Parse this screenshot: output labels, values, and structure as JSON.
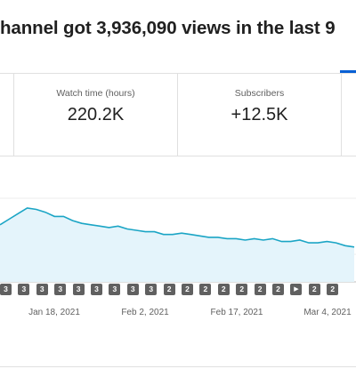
{
  "headline": "hannel got 3,936,090 views in the last 9",
  "metrics": [
    {
      "label": "Watch time (hours)",
      "value": "220.2K"
    },
    {
      "label": "Subscribers",
      "value": "+12.5K"
    }
  ],
  "colors": {
    "line": "#1ba5c5",
    "fill": "#e4f4fb",
    "accent": "#065fd4",
    "badge": "#606060"
  },
  "chart_data": {
    "type": "area",
    "y": [
      41,
      45,
      49,
      53,
      52,
      50,
      47,
      47,
      44,
      42,
      41,
      40,
      39,
      40,
      38,
      37,
      36,
      36,
      34,
      34,
      35,
      34,
      33,
      32,
      32,
      31,
      31,
      30,
      31,
      30,
      31,
      29,
      29,
      30,
      28,
      28,
      29,
      28,
      26,
      25
    ],
    "x_ticks": [
      "Jan 18, 2021",
      "Feb 2, 2021",
      "Feb 17, 2021",
      "Mar 4, 2021"
    ],
    "grid": true
  },
  "badges": [
    {
      "label": "3",
      "icon": "number-badge"
    },
    {
      "label": "3",
      "icon": "number-badge"
    },
    {
      "label": "3",
      "icon": "number-badge"
    },
    {
      "label": "3",
      "icon": "number-badge"
    },
    {
      "label": "3",
      "icon": "number-badge"
    },
    {
      "label": "3",
      "icon": "number-badge"
    },
    {
      "label": "3",
      "icon": "number-badge"
    },
    {
      "label": "3",
      "icon": "number-badge"
    },
    {
      "label": "3",
      "icon": "number-badge"
    },
    {
      "label": "2",
      "icon": "number-badge"
    },
    {
      "label": "2",
      "icon": "number-badge"
    },
    {
      "label": "2",
      "icon": "number-badge"
    },
    {
      "label": "2",
      "icon": "number-badge"
    },
    {
      "label": "2",
      "icon": "number-badge"
    },
    {
      "label": "2",
      "icon": "number-badge"
    },
    {
      "label": "2",
      "icon": "number-badge"
    },
    {
      "label": "",
      "icon": "play-icon"
    },
    {
      "label": "2",
      "icon": "number-badge"
    },
    {
      "label": "2",
      "icon": "number-badge"
    }
  ]
}
